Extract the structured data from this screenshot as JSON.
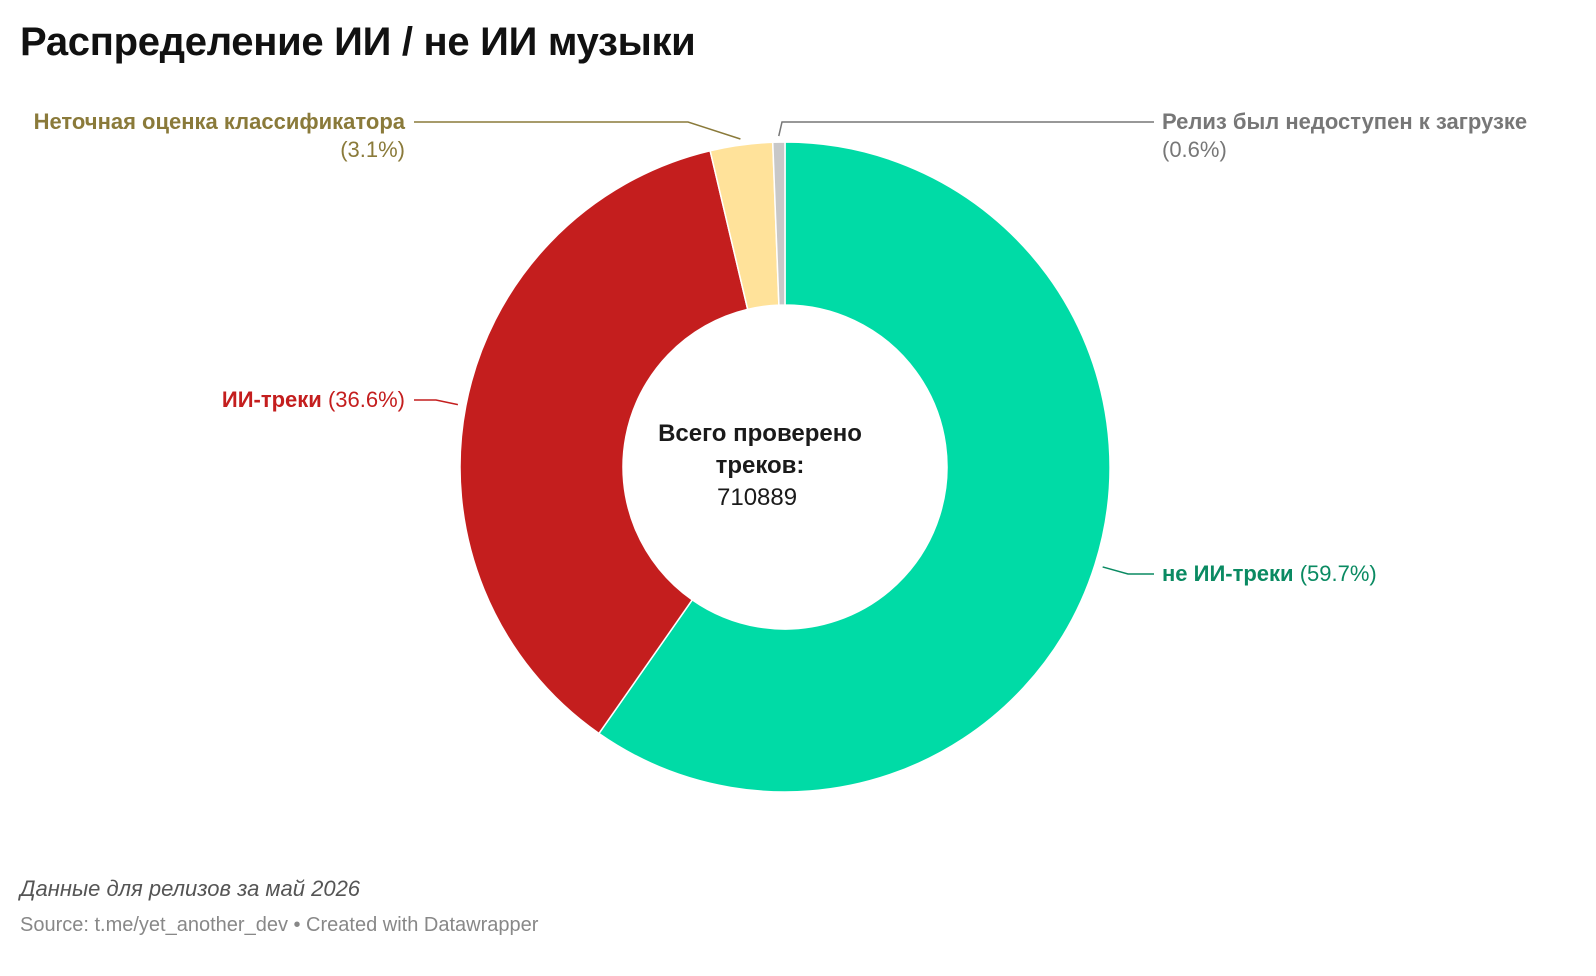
{
  "title": "Распределение ИИ / не ИИ музыки",
  "center": {
    "label": "Всего проверено треков:",
    "value": "710889"
  },
  "chart_data": {
    "type": "pie",
    "donut": true,
    "slices": [
      {
        "name": "не ИИ-треки",
        "value": 59.7,
        "percent_label": "(59.7%)",
        "color": "#00dba6",
        "label_color": "#0a8a62"
      },
      {
        "name": "ИИ-треки",
        "value": 36.6,
        "percent_label": "(36.6%)",
        "color": "#c41e1e",
        "label_color": "#c41e1e"
      },
      {
        "name": "Неточная оценка классификатора",
        "value": 3.1,
        "percent_label": "(3.1%)",
        "color": "#ffe29a",
        "label_color": "#8a7a3a"
      },
      {
        "name": "Релиз был недоступен к загрузке",
        "value": 0.6,
        "percent_label": "(0.6%)",
        "color": "#c8c8c8",
        "label_color": "#777777"
      }
    ]
  },
  "footer": {
    "note": "Данные для релизов за май 2026",
    "source": "Source: t.me/yet_another_dev • Created with Datawrapper"
  }
}
